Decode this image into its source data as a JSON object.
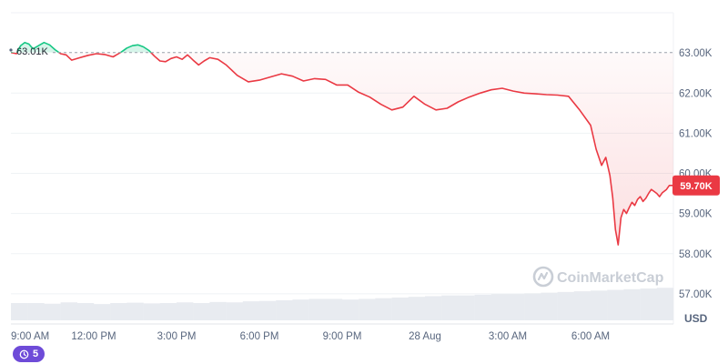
{
  "chart_data": {
    "type": "line",
    "unit": "USD",
    "watermark": "CoinMarketCap",
    "start_value_label": "63.01K",
    "reference_value": 63.01,
    "current_value_label": "59.70K",
    "current_value": 59.7,
    "colors": {
      "up": "#16c784",
      "down": "#ea3943",
      "grid": "#eff2f5",
      "volume": "#e8ebf0",
      "badge": "#6e4bd8"
    },
    "ylim": [
      56.25,
      64.0
    ],
    "y_ticks": [
      57,
      58,
      59,
      60,
      61,
      62,
      63
    ],
    "y_tick_labels": [
      "57.00K",
      "58.00K",
      "59.00K",
      "60.00K",
      "61.00K",
      "62.00K",
      "63.00K"
    ],
    "xlim": [
      0,
      24
    ],
    "x_ticks": [
      0,
      3,
      6,
      9,
      12,
      15,
      18,
      21
    ],
    "x_tick_labels": [
      "9:00 AM",
      "12:00 PM",
      "3:00 PM",
      "6:00 PM",
      "9:00 PM",
      "28 Aug",
      "3:00 AM",
      "6:00 AM"
    ],
    "series": [
      {
        "x": [
          0,
          0.2,
          0.35,
          0.5,
          0.65,
          0.8,
          1.0,
          1.2,
          1.4,
          1.6,
          1.8,
          2.0,
          2.2,
          2.5,
          2.8,
          3.1,
          3.4,
          3.7,
          4.0,
          4.2,
          4.4,
          4.6,
          4.8,
          5.0,
          5.2,
          5.4,
          5.6,
          5.8,
          6.0,
          6.2,
          6.4,
          6.6,
          6.8,
          7.0,
          7.2,
          7.5,
          7.8,
          8.2,
          8.6,
          9.0,
          9.4,
          9.8,
          10.2,
          10.6,
          11.0,
          11.4,
          11.8,
          12.2,
          12.6,
          13.0,
          13.4,
          13.8,
          14.2,
          14.6,
          15.0,
          15.4,
          15.8,
          16.2,
          16.6,
          17.0,
          17.4,
          17.8,
          18.2,
          18.6,
          19.0,
          19.4,
          19.8,
          20.2,
          20.6,
          21.0,
          21.2,
          21.4,
          21.55,
          21.7,
          21.8,
          21.9,
          22.0,
          22.1,
          22.2,
          22.3,
          22.4,
          22.5,
          22.6,
          22.7,
          22.8,
          22.9,
          23.0,
          23.1,
          23.2,
          23.3,
          23.4,
          23.5,
          23.6,
          23.75,
          23.85,
          24.0
        ],
        "y": [
          63.01,
          62.98,
          63.18,
          63.26,
          63.22,
          63.1,
          63.18,
          63.26,
          63.2,
          63.08,
          62.98,
          62.95,
          62.82,
          62.88,
          62.94,
          62.98,
          62.96,
          62.9,
          63.02,
          63.12,
          63.18,
          63.2,
          63.15,
          63.06,
          62.92,
          62.8,
          62.78,
          62.86,
          62.9,
          62.84,
          62.95,
          62.82,
          62.7,
          62.8,
          62.88,
          62.84,
          62.7,
          62.44,
          62.28,
          62.32,
          62.4,
          62.48,
          62.42,
          62.3,
          62.36,
          62.34,
          62.2,
          62.2,
          62.02,
          61.9,
          61.72,
          61.58,
          61.65,
          61.92,
          61.72,
          61.58,
          61.62,
          61.78,
          61.9,
          62.0,
          62.08,
          62.12,
          62.05,
          62.0,
          61.98,
          61.96,
          61.95,
          61.92,
          61.58,
          61.2,
          60.6,
          60.2,
          60.4,
          59.95,
          59.4,
          58.6,
          58.22,
          58.9,
          59.1,
          59.0,
          59.15,
          59.28,
          59.2,
          59.35,
          59.42,
          59.3,
          59.38,
          59.5,
          59.6,
          59.55,
          59.5,
          59.42,
          59.52,
          59.6,
          59.7,
          59.7
        ]
      }
    ],
    "volume": [
      0.5,
      0.5,
      0.48,
      0.52,
      0.5,
      0.47,
      0.5,
      0.51,
      0.49,
      0.5,
      0.52,
      0.5,
      0.53,
      0.52,
      0.55,
      0.56,
      0.58,
      0.6,
      0.62,
      0.62,
      0.6,
      0.62,
      0.64,
      0.66,
      0.68,
      0.7,
      0.72,
      0.72,
      0.74,
      0.76,
      0.76,
      0.78,
      0.8,
      0.82,
      0.84,
      0.86,
      0.88,
      0.9,
      0.92,
      0.94
    ]
  },
  "badge": {
    "count": "5"
  }
}
